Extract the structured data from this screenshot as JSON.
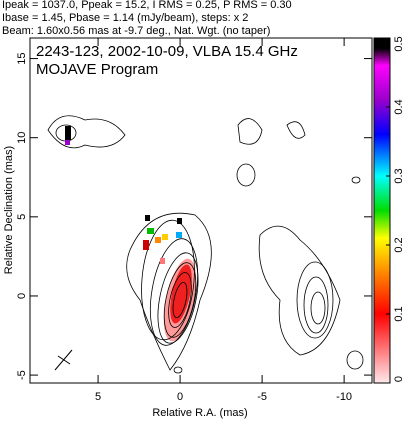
{
  "chart_data": {
    "type": "contour",
    "header": [
      "Ipeak = 1037.0, Ppeak = 15.2, I RMS = 0.25, P RMS = 0.30",
      "Ibase = 1.45, Pbase = 1.14 (mJy/beam), steps: x 2",
      "Beam: 1.60x0.56 mas at -9.7 deg., Nat. Wgt. (no taper)"
    ],
    "annotations": [
      "2243-123, 2002-10-09, VLBA 15.4 GHz",
      "MOJAVE Program"
    ],
    "xlabel": "Relative R.A. (mas)",
    "ylabel": "Relative Declination (mas)",
    "xlim": [
      9.15,
      -11.7
    ],
    "xticks": [
      5,
      0,
      -5,
      -10
    ],
    "ylim": [
      -5.5,
      16.3
    ],
    "yticks": [
      -5,
      0,
      5,
      10,
      15
    ],
    "colorbar": {
      "lim": [
        0,
        0.5
      ],
      "ticks": [
        0,
        0.1,
        0.2,
        0.3,
        0.4,
        0.5
      ]
    }
  }
}
